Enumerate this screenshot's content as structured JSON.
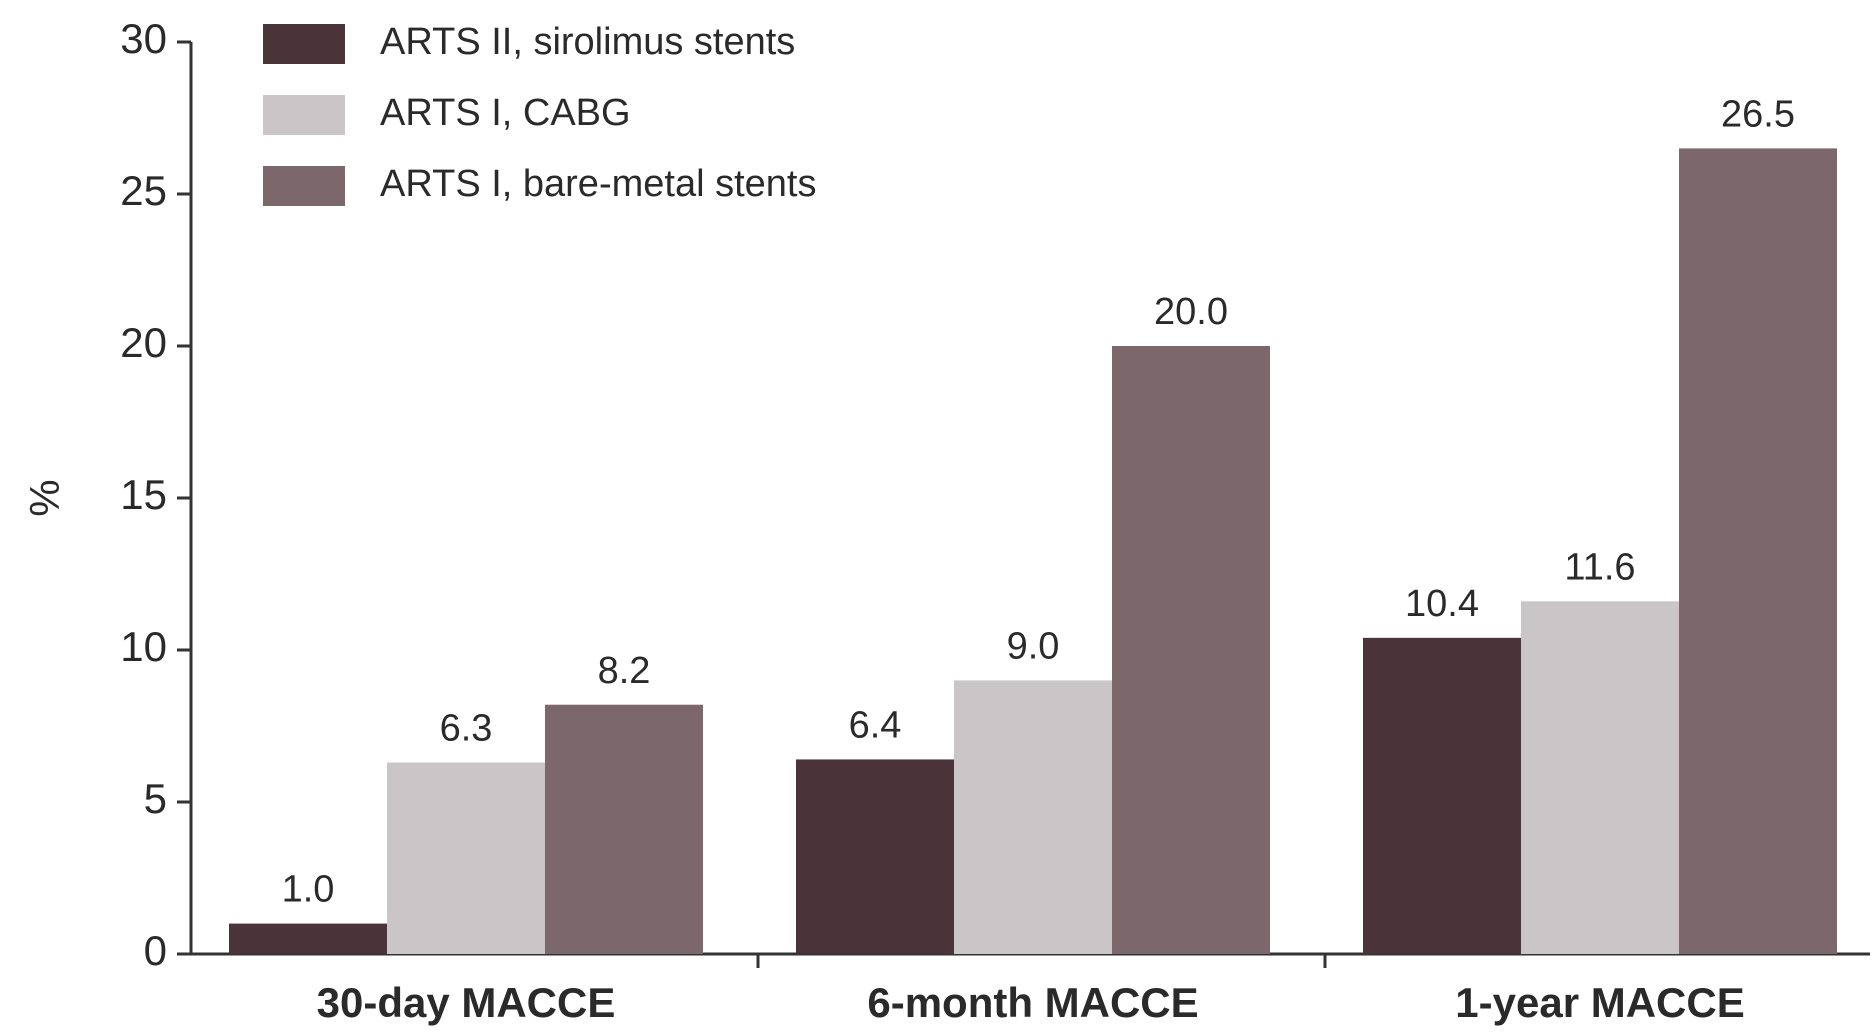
{
  "chart_data": {
    "type": "bar",
    "y_label": "%",
    "categories": [
      "30-day MACCE",
      "6-month MACCE",
      "1-year MACCE"
    ],
    "series": [
      {
        "name": "ARTS II, sirolimus stents",
        "color": "#4b3439",
        "values": [
          1.0,
          6.4,
          10.4
        ],
        "value_labels": [
          "1.0",
          "6.4",
          "10.4"
        ]
      },
      {
        "name": "ARTS I, CABG",
        "color": "#cac6c7",
        "values": [
          6.3,
          9.0,
          11.6
        ],
        "value_labels": [
          "6.3",
          "9.0",
          "11.6"
        ]
      },
      {
        "name": "ARTS I, bare-metal stents",
        "color": "#7b676c",
        "values": [
          8.2,
          20.0,
          26.5
        ],
        "value_labels": [
          "8.2",
          "20.0",
          "26.5"
        ]
      }
    ],
    "ylim": [
      0,
      30
    ],
    "yticks": [
      0,
      5,
      10,
      15,
      20,
      25,
      30
    ],
    "legend": "upper left"
  }
}
